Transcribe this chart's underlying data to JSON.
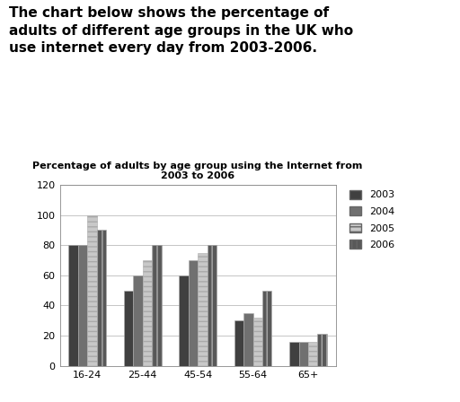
{
  "title": "Percentage of adults by age group using the Internet from\n2003 to 2006",
  "header_text": "The chart below shows the percentage of\nadults of different age groups in the UK who\nuse internet every day from 2003-2006.",
  "categories": [
    "16-24",
    "25-44",
    "45-54",
    "55-64",
    "65+"
  ],
  "years": [
    "2003",
    "2004",
    "2005",
    "2006"
  ],
  "data": {
    "2003": [
      80,
      50,
      60,
      30,
      16
    ],
    "2004": [
      80,
      60,
      70,
      35,
      16
    ],
    "2005": [
      100,
      70,
      75,
      32,
      16
    ],
    "2006": [
      90,
      80,
      80,
      50,
      21
    ]
  },
  "colors_map": {
    "2003": "#404040",
    "2004": "#707070",
    "2005": "#c8c8c8",
    "2006": "#585858"
  },
  "hatch_map": {
    "2003": "",
    "2004": "",
    "2005": "---",
    "2006": "|||"
  },
  "ylim": [
    0,
    120
  ],
  "yticks": [
    0,
    20,
    40,
    60,
    80,
    100,
    120
  ],
  "bar_width": 0.17,
  "chart_bg": "#ffffff",
  "outer_bg": "#ffffff",
  "legend_fontsize": 8,
  "title_fontsize": 8,
  "tick_fontsize": 8,
  "header_fontsize": 11
}
